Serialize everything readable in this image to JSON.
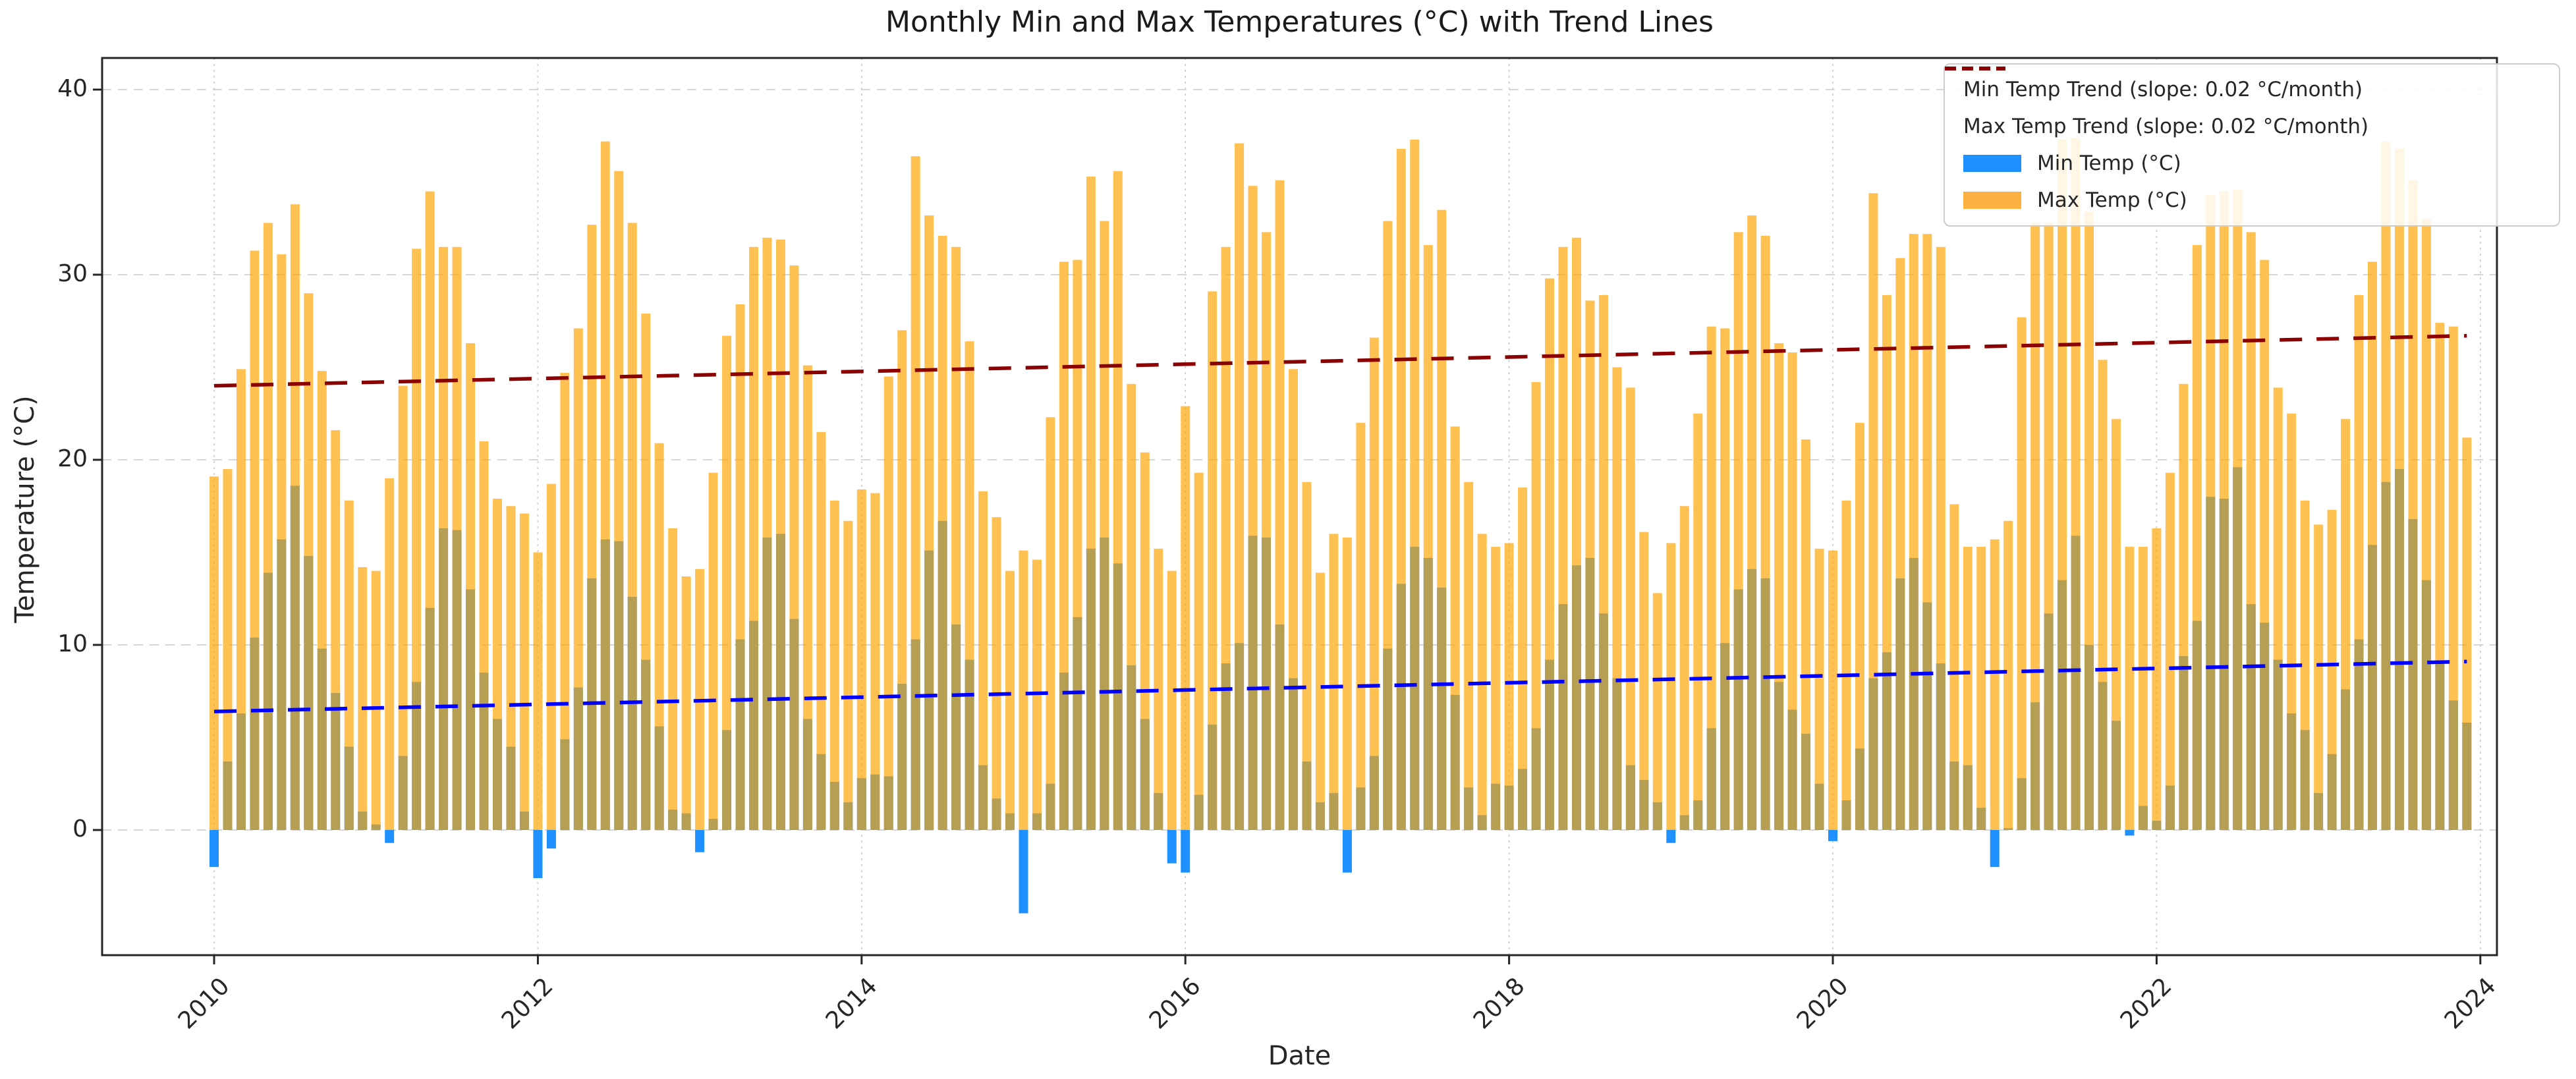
{
  "title": "Monthly Min and Max Temperatures (°C) with Trend Lines",
  "axes": {
    "xlabel": "Date",
    "ylabel": "Temperature (°C)",
    "ytick_labels": [
      "0",
      "10",
      "20",
      "30",
      "40"
    ],
    "ytick_values": [
      0,
      10,
      20,
      30,
      40
    ],
    "xtick_labels": [
      "2010",
      "2012",
      "2014",
      "2016",
      "2018",
      "2020",
      "2022",
      "2024"
    ],
    "grid": true
  },
  "legend": {
    "position": "upper right",
    "items": [
      {
        "label": "Min Temp Trend (slope: 0.02 °C/month)",
        "swatch": "dashed-line",
        "color": "#0000ff"
      },
      {
        "label": "Max Temp Trend (slope: 0.02 °C/month)",
        "swatch": "dashed-line",
        "color": "#8b0000"
      },
      {
        "label": "Min Temp (°C)",
        "swatch": "patch",
        "color": "#1e90ff"
      },
      {
        "label": "Max Temp (°C)",
        "swatch": "patch",
        "color": "#fbb040"
      }
    ]
  },
  "style": {
    "max_bar_color": "#ffa500",
    "max_bar_opacity": 0.68,
    "min_bar_color": "#1e90ff",
    "min_trend_color": "#0000ff",
    "max_trend_color": "#8b0000",
    "grid_color": "#c9c9c9",
    "spine_color": "#262626"
  },
  "chart_data": {
    "type": "bar",
    "title": "Monthly Min and Max Temperatures (°C) with Trend Lines",
    "xlabel": "Date",
    "ylabel": "Temperature (°C)",
    "x_start": "2010-01",
    "x_end": "2023-12",
    "months_per_year": 12,
    "ylim": [
      -6.8,
      41.7
    ],
    "legend_position": "upper right",
    "trends": [
      {
        "name": "Min Temp Trend",
        "slope_label": "0.02 °C/month",
        "start_value": 6.4,
        "end_value": 9.1
      },
      {
        "name": "Max Temp Trend",
        "slope_label": "0.02 °C/month",
        "start_value": 24.0,
        "end_value": 26.7
      }
    ],
    "series_names": [
      "Min Temp (°C)",
      "Max Temp (°C)"
    ],
    "years": [
      {
        "year": 2010,
        "max": [
          19.1,
          19.5,
          24.9,
          31.3,
          32.8,
          31.1,
          33.8,
          29.0,
          24.8,
          21.6,
          17.8,
          14.2
        ],
        "min": [
          -2.0,
          3.7,
          6.3,
          10.4,
          13.9,
          15.7,
          18.6,
          14.8,
          9.8,
          7.4,
          4.5,
          1.0
        ]
      },
      {
        "year": 2011,
        "max": [
          14.0,
          19.0,
          24.0,
          31.4,
          34.5,
          31.5,
          31.5,
          26.3,
          21.0,
          17.9,
          17.5,
          17.1
        ],
        "min": [
          0.3,
          -0.7,
          4.0,
          8.0,
          12.0,
          16.3,
          16.2,
          13.0,
          8.5,
          6.0,
          4.5,
          1.0
        ]
      },
      {
        "year": 2012,
        "max": [
          15.0,
          18.7,
          24.7,
          27.1,
          32.7,
          37.2,
          35.6,
          32.8,
          27.9,
          20.9,
          16.3,
          13.7
        ],
        "min": [
          -2.6,
          -1.0,
          4.9,
          7.7,
          13.6,
          15.7,
          15.6,
          12.6,
          9.2,
          5.6,
          1.1,
          0.9
        ]
      },
      {
        "year": 2013,
        "max": [
          14.1,
          19.3,
          26.7,
          28.4,
          31.5,
          32.0,
          31.9,
          30.5,
          25.1,
          21.5,
          17.8,
          16.7
        ],
        "min": [
          -1.2,
          0.6,
          5.4,
          10.3,
          11.3,
          15.8,
          16.0,
          11.4,
          6.0,
          4.1,
          2.6,
          1.5
        ]
      },
      {
        "year": 2014,
        "max": [
          18.4,
          18.2,
          24.5,
          27.0,
          36.4,
          33.2,
          32.1,
          31.5,
          26.4,
          18.3,
          16.9,
          14.0
        ],
        "min": [
          2.8,
          3.0,
          2.9,
          7.9,
          10.3,
          15.1,
          16.7,
          11.1,
          9.2,
          3.5,
          1.7,
          0.9
        ]
      },
      {
        "year": 2015,
        "max": [
          15.1,
          14.6,
          22.3,
          30.7,
          30.8,
          35.3,
          32.9,
          35.6,
          24.1,
          20.4,
          15.2,
          14.0
        ],
        "min": [
          -4.5,
          0.9,
          2.5,
          8.5,
          11.5,
          15.2,
          15.8,
          14.4,
          8.9,
          6.0,
          2.0,
          -1.8
        ]
      },
      {
        "year": 2016,
        "max": [
          22.9,
          19.3,
          29.1,
          31.5,
          37.1,
          34.8,
          32.3,
          35.1,
          24.9,
          18.8,
          13.9,
          16.0
        ],
        "min": [
          -2.3,
          1.9,
          5.7,
          9.0,
          10.1,
          15.9,
          15.8,
          11.1,
          8.2,
          3.7,
          1.5,
          2.0
        ]
      },
      {
        "year": 2017,
        "max": [
          15.8,
          22.0,
          26.6,
          32.9,
          36.8,
          37.3,
          31.6,
          33.5,
          21.8,
          18.8,
          16.0,
          15.3
        ],
        "min": [
          -2.3,
          2.3,
          4.0,
          9.8,
          13.3,
          15.3,
          14.7,
          13.1,
          7.3,
          2.3,
          0.8,
          2.5
        ]
      },
      {
        "year": 2018,
        "max": [
          15.5,
          18.5,
          24.2,
          29.8,
          31.5,
          32.0,
          28.6,
          28.9,
          25.0,
          23.9,
          16.1,
          12.8
        ],
        "min": [
          2.4,
          3.3,
          5.5,
          9.2,
          12.2,
          14.3,
          14.7,
          11.7,
          8.2,
          3.5,
          2.7,
          1.5
        ]
      },
      {
        "year": 2019,
        "max": [
          15.5,
          17.5,
          22.5,
          27.2,
          27.1,
          32.3,
          33.2,
          32.1,
          26.3,
          25.8,
          21.1,
          15.2
        ],
        "min": [
          -0.7,
          0.8,
          1.6,
          5.5,
          10.1,
          13.0,
          14.1,
          13.6,
          8.0,
          6.5,
          5.2,
          2.5
        ]
      },
      {
        "year": 2020,
        "max": [
          15.1,
          17.8,
          22.0,
          34.4,
          28.9,
          30.9,
          32.2,
          32.2,
          31.5,
          17.6,
          15.3,
          15.3
        ],
        "min": [
          -0.6,
          1.6,
          4.4,
          8.2,
          9.6,
          13.6,
          14.7,
          12.3,
          9.0,
          3.7,
          3.5,
          1.2
        ]
      },
      {
        "year": 2021,
        "max": [
          15.7,
          16.7,
          27.7,
          32.8,
          32.8,
          37.3,
          37.4,
          33.4,
          25.4,
          22.2,
          15.3,
          15.3
        ],
        "min": [
          -2.0,
          0.1,
          2.8,
          6.9,
          11.7,
          13.5,
          15.9,
          10.0,
          8.0,
          5.9,
          -0.3,
          1.3
        ]
      },
      {
        "year": 2022,
        "max": [
          16.3,
          19.3,
          24.1,
          31.6,
          34.3,
          34.5,
          34.6,
          32.3,
          30.8,
          23.9,
          22.5,
          17.8
        ],
        "min": [
          0.5,
          2.4,
          9.4,
          11.3,
          18.0,
          17.9,
          19.6,
          12.2,
          11.2,
          9.2,
          6.3,
          5.4
        ]
      },
      {
        "year": 2023,
        "max": [
          16.5,
          17.3,
          22.2,
          28.9,
          30.7,
          37.2,
          36.8,
          35.1,
          33.0,
          27.4,
          27.2,
          21.2
        ],
        "min": [
          2.0,
          4.1,
          7.6,
          10.3,
          15.4,
          18.8,
          19.5,
          16.8,
          13.5,
          9.0,
          7.0,
          5.8
        ]
      }
    ]
  }
}
